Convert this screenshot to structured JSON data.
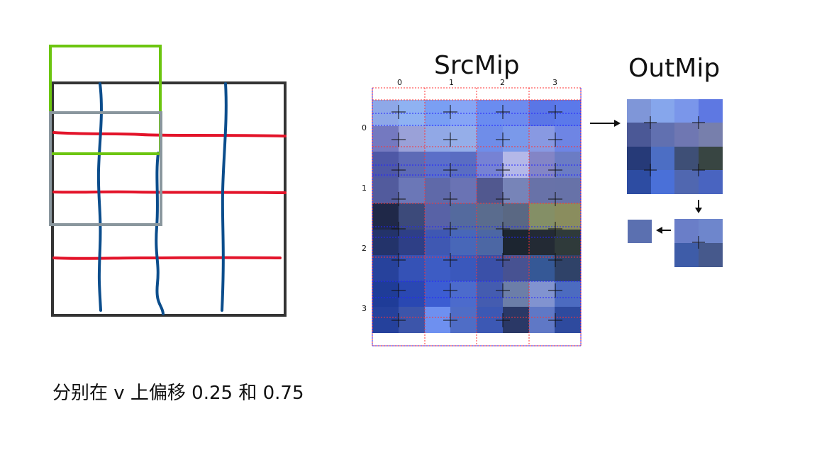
{
  "labels": {
    "src_title": "SrcMip",
    "out_title": "OutMip",
    "caption": "分别在 v 上偏移 0.25 和 0.75"
  },
  "src_ticks": {
    "columns": [
      "0",
      "1",
      "2",
      "3"
    ],
    "rows": [
      "0",
      "1",
      "2",
      "3"
    ]
  },
  "colors": {
    "black_frame": "#333333",
    "red_lines": "#e3142a",
    "blue_lines": "#0b4d8c",
    "green_box": "#6cc510",
    "gray_box": "#8a979e",
    "red_dotted": "#ff3333",
    "blue_dotted": "#2222ff"
  },
  "src_grid": [
    [
      "#8ea8e8",
      "#8fb2f2",
      "#7a9ff3",
      "#86a5f5",
      "#6a8cf0",
      "#6d8bee",
      "#5a76e6",
      "#5b79ea"
    ],
    [
      "#7479c0",
      "#9aa1d8",
      "#91a8e6",
      "#95aee9",
      "#6f8de9",
      "#7a99ea",
      "#8899e2",
      "#6e85e4"
    ],
    [
      "#4e58a6",
      "#5d6ab6",
      "#5b6fc8",
      "#5a6dc2",
      "#7682d4",
      "#b4b8e8",
      "#8385c6",
      "#6b7cc4"
    ],
    [
      "#525b9d",
      "#6b77b7",
      "#5f69a9",
      "#6a73b4",
      "#51588f",
      "#7784b8",
      "#6872a8",
      "#6772a8"
    ],
    [
      "#1f2848",
      "#3c4a7a",
      "#5862a6",
      "#546a9e",
      "#5a6c8e",
      "#5a6883",
      "#848f66",
      "#8a8d5e"
    ],
    [
      "#23336a",
      "#2e3f86",
      "#3f58b2",
      "#4867b8",
      "#4c67a4",
      "#1c2530",
      "#232a34",
      "#2f3a3a"
    ],
    [
      "#27429c",
      "#3552b6",
      "#3d5cc4",
      "#3a58bc",
      "#3a50a8",
      "#475292",
      "#355896",
      "#2f4268"
    ],
    [
      "#1f3c98",
      "#2a48b2",
      "#3c5dd2",
      "#4c6bcc",
      "#445cb0",
      "#6c7ea8",
      "#8193d0",
      "#4c6bc0"
    ],
    [
      "#25419c",
      "#3c55aa",
      "#6e90f0",
      "#4f6dc6",
      "#3c58b4",
      "#2a3866",
      "#5f78c6",
      "#2e4a9e"
    ]
  ],
  "out_grid": [
    [
      "#7f96d8",
      "#86a6ec",
      "#7a96ea",
      "#5e78e2"
    ],
    [
      "#4b5896",
      "#6170b0",
      "#6f77b2",
      "#777fac"
    ],
    [
      "#263a78",
      "#4c6ec4",
      "#3e4f76",
      "#384542"
    ],
    [
      "#2d4ca2",
      "#4a70d8",
      "#5067b0",
      "#4964c0"
    ]
  ],
  "out_small_grid": [
    [
      "#6a7ec8",
      "#6e86cc"
    ],
    [
      "#3e5ca8",
      "#46598c"
    ]
  ],
  "final_pixel": "#5b70b0"
}
